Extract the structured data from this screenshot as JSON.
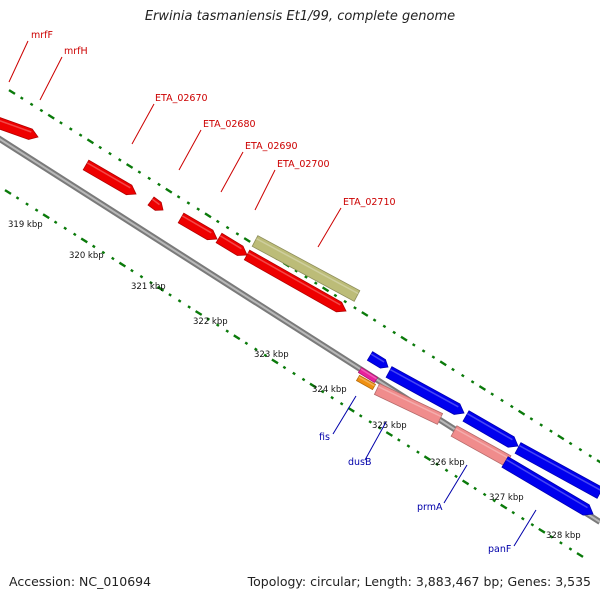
{
  "title": "Erwinia tasmaniensis Et1/99, complete genome",
  "footer": {
    "accession": "Accession: NC_010694",
    "stats": "Topology: circular; Length: 3,883,467 bp; Genes: 3,535"
  },
  "colors": {
    "backbone": "#8c8c8c",
    "tick": "#0a7a0a",
    "red_gene": "#ee0000",
    "blue_gene": "#0000ee",
    "pink_gene": "#f08c8c",
    "olive_gene": "#bcbc78",
    "magenta_gene": "#e8209c",
    "orange_gene": "#f09010",
    "red_label": "#cc0000",
    "blue_label": "#0000aa"
  },
  "scale_labels": [
    "319 kbp",
    "320 kbp",
    "321 kbp",
    "322 kbp",
    "323 kbp",
    "324 kbp",
    "325 kbp",
    "326 kbp",
    "327 kbp",
    "328 kbp"
  ],
  "red_labels": [
    "mrfF",
    "mrfH",
    "ETA_02670",
    "ETA_02680",
    "ETA_02690",
    "ETA_02700",
    "ETA_02710"
  ],
  "blue_labels": [
    "fis",
    "dusB",
    "prmA",
    "panF"
  ]
}
